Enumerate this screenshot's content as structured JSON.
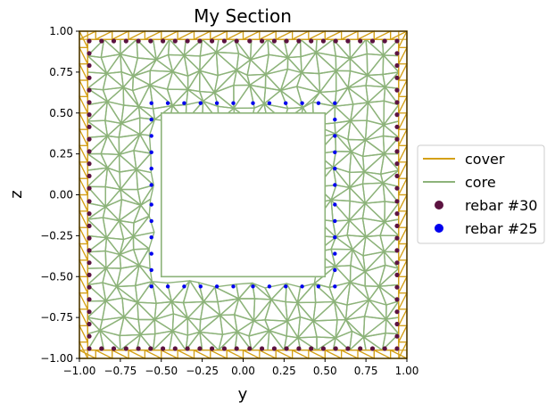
{
  "chart_data": {
    "type": "scatter",
    "title": "My Section",
    "xlabel": "y",
    "ylabel": "z",
    "xlim": [
      -1.0,
      1.0
    ],
    "ylim": [
      -1.0,
      1.0
    ],
    "xticks": [
      "−1.00",
      "−0.75",
      "−0.50",
      "−0.25",
      "0.00",
      "0.25",
      "0.50",
      "0.75",
      "1.00"
    ],
    "yticks": [
      "−1.00",
      "−0.75",
      "−0.50",
      "−0.25",
      "0.00",
      "0.25",
      "0.50",
      "0.75",
      "1.00"
    ],
    "legend_position": "right",
    "series": [
      {
        "name": "cover",
        "kind": "line",
        "color": "#d4a017"
      },
      {
        "name": "core",
        "kind": "line",
        "color": "#8db37a"
      },
      {
        "name": "rebar #30",
        "kind": "marker",
        "color": "#5c1340"
      },
      {
        "name": "rebar #25",
        "kind": "marker",
        "color": "#0000ee"
      }
    ],
    "section": {
      "outer": [
        [
          -1,
          -1
        ],
        [
          1,
          -1
        ],
        [
          1,
          1
        ],
        [
          -1,
          1
        ]
      ],
      "cover_inner": [
        [
          -0.95,
          -0.95
        ],
        [
          0.95,
          -0.95
        ],
        [
          0.95,
          0.95
        ],
        [
          -0.95,
          0.95
        ]
      ],
      "hole": [
        [
          -0.5,
          -0.5
        ],
        [
          0.5,
          -0.5
        ],
        [
          0.5,
          0.5
        ],
        [
          -0.5,
          0.5
        ]
      ]
    },
    "rebar_30": [
      [
        -0.94,
        0.94
      ],
      [
        -0.865,
        0.94
      ],
      [
        -0.79,
        0.94
      ],
      [
        -0.715,
        0.94
      ],
      [
        -0.64,
        0.94
      ],
      [
        -0.565,
        0.94
      ],
      [
        -0.49,
        0.94
      ],
      [
        -0.415,
        0.94
      ],
      [
        -0.34,
        0.94
      ],
      [
        -0.265,
        0.94
      ],
      [
        -0.19,
        0.94
      ],
      [
        -0.115,
        0.94
      ],
      [
        -0.04,
        0.94
      ],
      [
        0.04,
        0.94
      ],
      [
        0.115,
        0.94
      ],
      [
        0.19,
        0.94
      ],
      [
        0.265,
        0.94
      ],
      [
        0.34,
        0.94
      ],
      [
        0.415,
        0.94
      ],
      [
        0.49,
        0.94
      ],
      [
        0.565,
        0.94
      ],
      [
        0.64,
        0.94
      ],
      [
        0.715,
        0.94
      ],
      [
        0.79,
        0.94
      ],
      [
        0.865,
        0.94
      ],
      [
        0.94,
        0.94
      ],
      [
        -0.94,
        -0.94
      ],
      [
        -0.865,
        -0.94
      ],
      [
        -0.79,
        -0.94
      ],
      [
        -0.715,
        -0.94
      ],
      [
        -0.64,
        -0.94
      ],
      [
        -0.565,
        -0.94
      ],
      [
        -0.49,
        -0.94
      ],
      [
        -0.415,
        -0.94
      ],
      [
        -0.34,
        -0.94
      ],
      [
        -0.265,
        -0.94
      ],
      [
        -0.19,
        -0.94
      ],
      [
        -0.115,
        -0.94
      ],
      [
        -0.04,
        -0.94
      ],
      [
        0.04,
        -0.94
      ],
      [
        0.115,
        -0.94
      ],
      [
        0.19,
        -0.94
      ],
      [
        0.265,
        -0.94
      ],
      [
        0.34,
        -0.94
      ],
      [
        0.415,
        -0.94
      ],
      [
        0.49,
        -0.94
      ],
      [
        0.565,
        -0.94
      ],
      [
        0.64,
        -0.94
      ],
      [
        0.715,
        -0.94
      ],
      [
        0.79,
        -0.94
      ],
      [
        0.865,
        -0.94
      ],
      [
        0.94,
        -0.94
      ],
      [
        -0.94,
        0.865
      ],
      [
        -0.94,
        0.79
      ],
      [
        -0.94,
        0.715
      ],
      [
        -0.94,
        0.64
      ],
      [
        -0.94,
        0.565
      ],
      [
        -0.94,
        0.49
      ],
      [
        -0.94,
        0.415
      ],
      [
        -0.94,
        0.34
      ],
      [
        -0.94,
        0.265
      ],
      [
        -0.94,
        0.19
      ],
      [
        -0.94,
        0.115
      ],
      [
        -0.94,
        0.04
      ],
      [
        -0.94,
        -0.04
      ],
      [
        -0.94,
        -0.115
      ],
      [
        -0.94,
        -0.19
      ],
      [
        -0.94,
        -0.265
      ],
      [
        -0.94,
        -0.34
      ],
      [
        -0.94,
        -0.415
      ],
      [
        -0.94,
        -0.49
      ],
      [
        -0.94,
        -0.565
      ],
      [
        -0.94,
        -0.64
      ],
      [
        -0.94,
        -0.715
      ],
      [
        -0.94,
        -0.79
      ],
      [
        -0.94,
        -0.865
      ],
      [
        0.94,
        0.865
      ],
      [
        0.94,
        0.79
      ],
      [
        0.94,
        0.715
      ],
      [
        0.94,
        0.64
      ],
      [
        0.94,
        0.565
      ],
      [
        0.94,
        0.49
      ],
      [
        0.94,
        0.415
      ],
      [
        0.94,
        0.34
      ],
      [
        0.94,
        0.265
      ],
      [
        0.94,
        0.19
      ],
      [
        0.94,
        0.115
      ],
      [
        0.94,
        0.04
      ],
      [
        0.94,
        -0.04
      ],
      [
        0.94,
        -0.115
      ],
      [
        0.94,
        -0.19
      ],
      [
        0.94,
        -0.265
      ],
      [
        0.94,
        -0.34
      ],
      [
        0.94,
        -0.415
      ],
      [
        0.94,
        -0.49
      ],
      [
        0.94,
        -0.565
      ],
      [
        0.94,
        -0.64
      ],
      [
        0.94,
        -0.715
      ],
      [
        0.94,
        -0.79
      ],
      [
        0.94,
        -0.865
      ]
    ],
    "rebar_25": [
      [
        -0.56,
        0.56
      ],
      [
        -0.46,
        0.56
      ],
      [
        -0.36,
        0.56
      ],
      [
        -0.26,
        0.56
      ],
      [
        -0.16,
        0.56
      ],
      [
        -0.06,
        0.56
      ],
      [
        0.06,
        0.56
      ],
      [
        0.16,
        0.56
      ],
      [
        0.26,
        0.56
      ],
      [
        0.36,
        0.56
      ],
      [
        0.46,
        0.56
      ],
      [
        0.56,
        0.56
      ],
      [
        -0.56,
        -0.56
      ],
      [
        -0.46,
        -0.56
      ],
      [
        -0.36,
        -0.56
      ],
      [
        -0.26,
        -0.56
      ],
      [
        -0.16,
        -0.56
      ],
      [
        -0.06,
        -0.56
      ],
      [
        0.06,
        -0.56
      ],
      [
        0.16,
        -0.56
      ],
      [
        0.26,
        -0.56
      ],
      [
        0.36,
        -0.56
      ],
      [
        0.46,
        -0.56
      ],
      [
        0.56,
        -0.56
      ],
      [
        -0.56,
        0.46
      ],
      [
        -0.56,
        0.36
      ],
      [
        -0.56,
        0.26
      ],
      [
        -0.56,
        0.16
      ],
      [
        -0.56,
        0.06
      ],
      [
        -0.56,
        -0.06
      ],
      [
        -0.56,
        -0.16
      ],
      [
        -0.56,
        -0.26
      ],
      [
        -0.56,
        -0.36
      ],
      [
        -0.56,
        -0.46
      ],
      [
        0.56,
        0.46
      ],
      [
        0.56,
        0.36
      ],
      [
        0.56,
        0.26
      ],
      [
        0.56,
        0.16
      ],
      [
        0.56,
        0.06
      ],
      [
        0.56,
        -0.06
      ],
      [
        0.56,
        -0.16
      ],
      [
        0.56,
        -0.26
      ],
      [
        0.56,
        -0.36
      ],
      [
        0.56,
        -0.46
      ]
    ]
  }
}
